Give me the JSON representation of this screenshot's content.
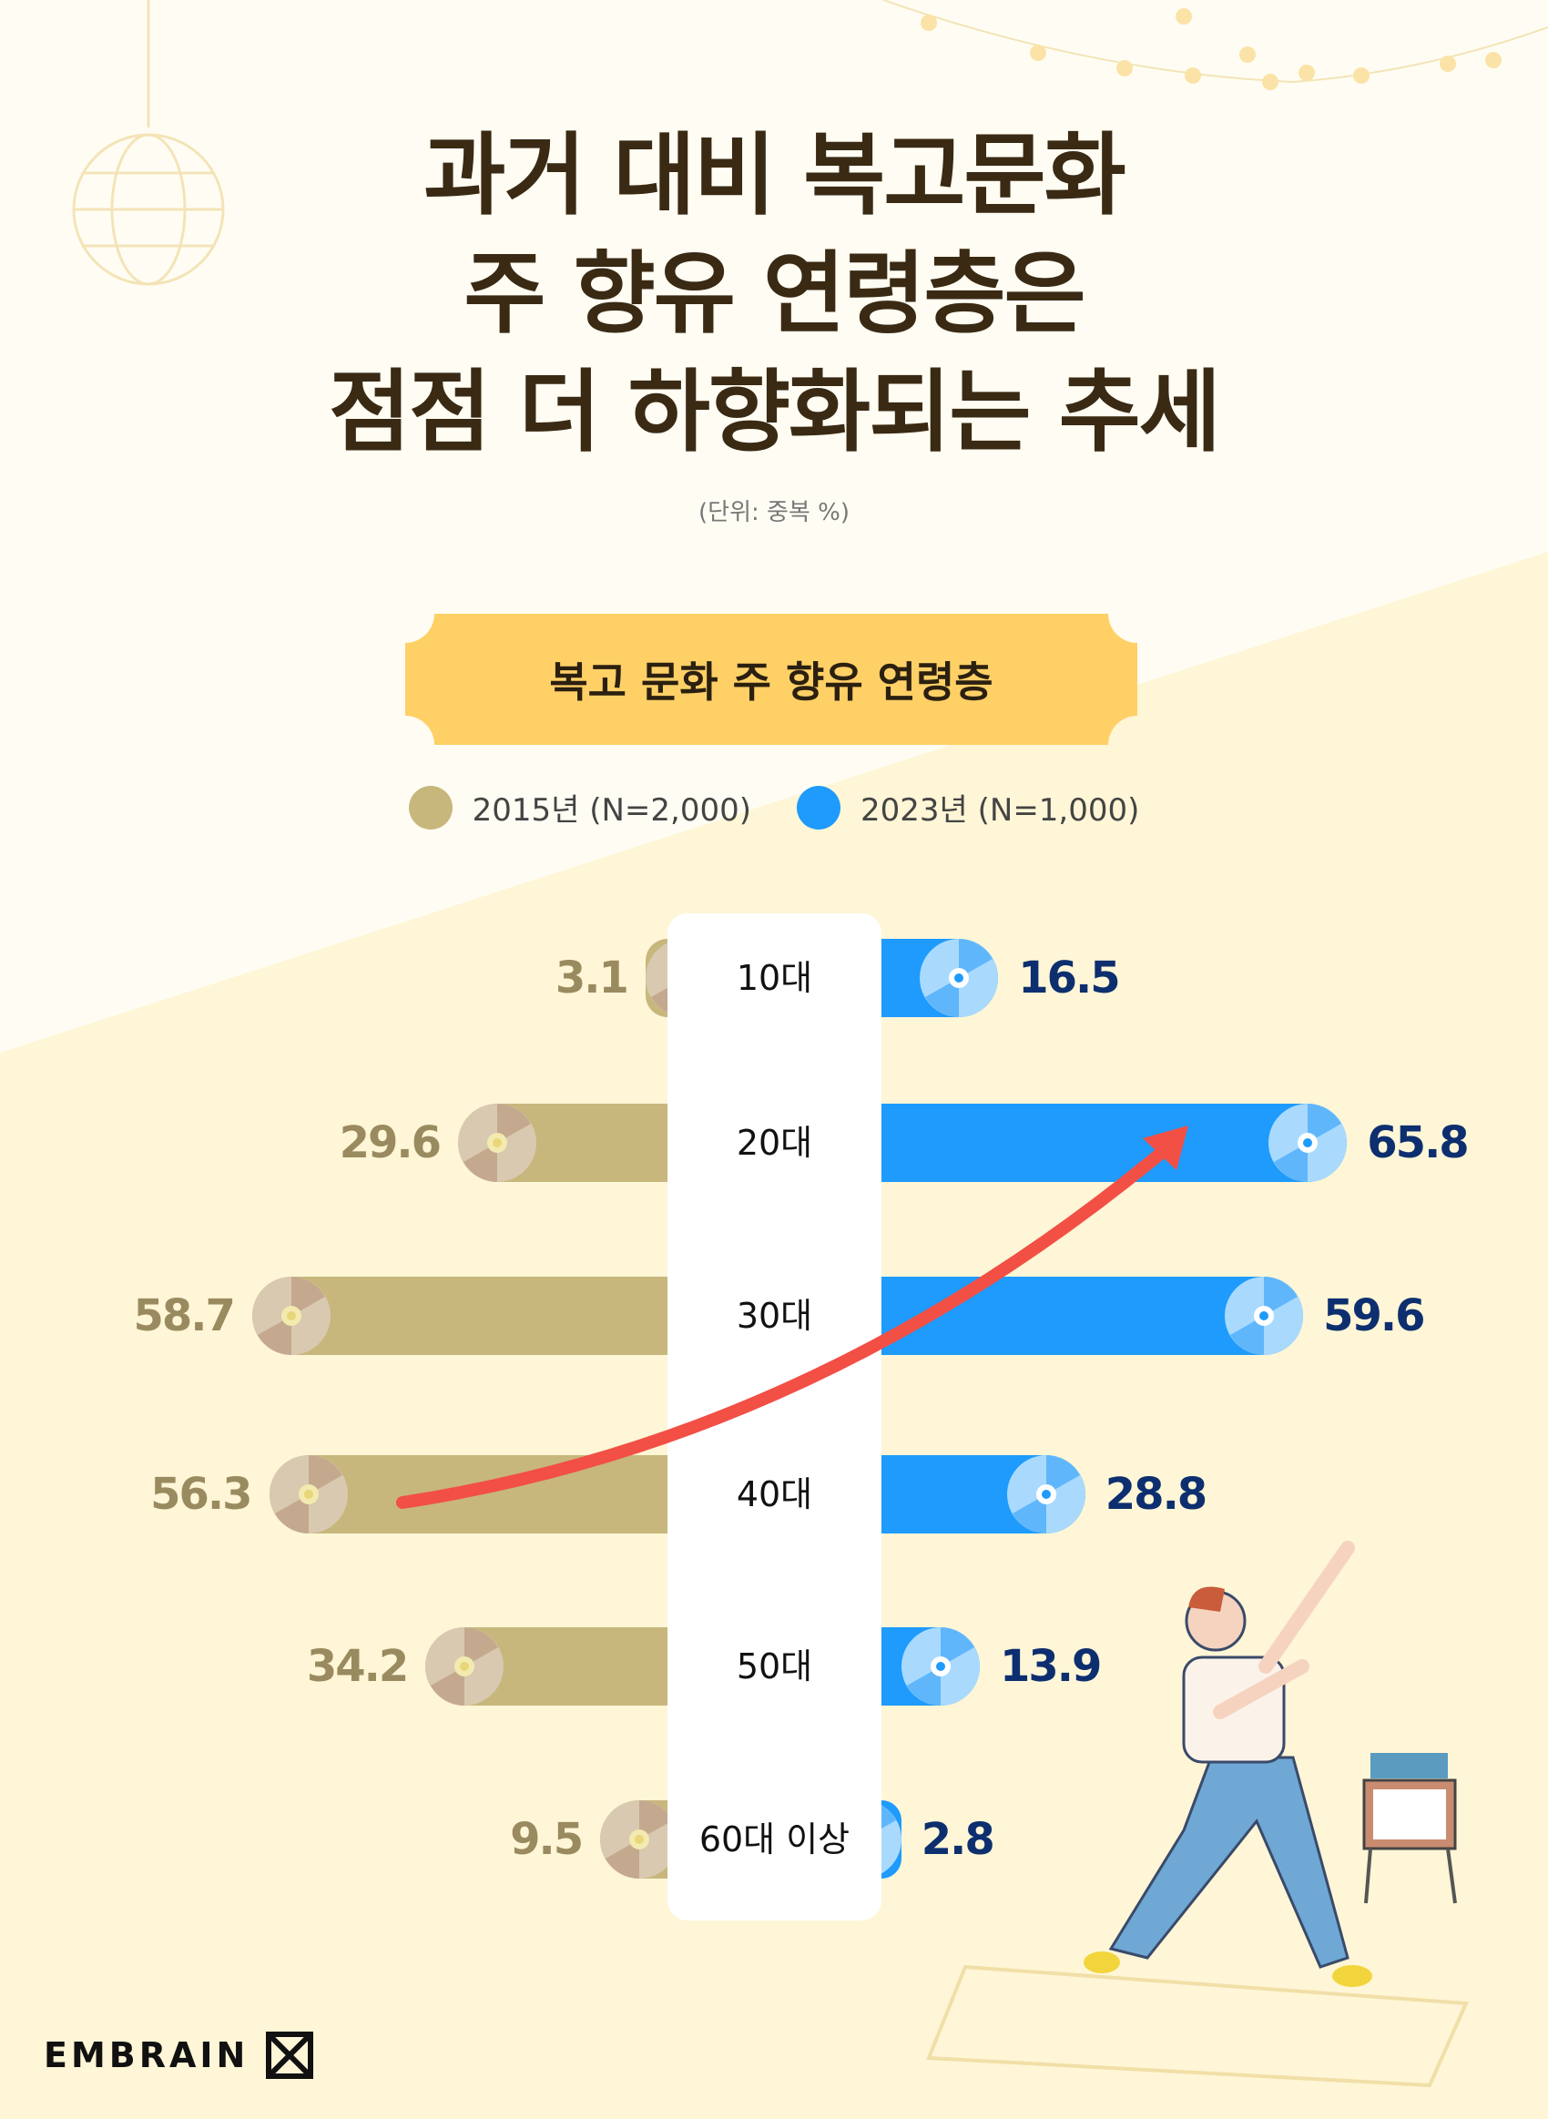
{
  "title": [
    "과거 대비 복고문화",
    "주 향유 연령층은",
    "점점 더 하향화되는 추세"
  ],
  "unit": "(단위: 중복 %)",
  "brand": "EMBRAIN",
  "colors": {
    "s2015": "#c8b77c",
    "s2023": "#1e9bfc",
    "label2015": "#9a8a5f",
    "label2023": "#0d2f6f",
    "ribbon": "#ffd066",
    "trend": "#f24f45"
  },
  "chart_data": {
    "type": "bar",
    "orientation": "horizontal-butterfly",
    "title": "복고 문화 주 향유 연령층",
    "categories": [
      "10대",
      "20대",
      "30대",
      "40대",
      "50대",
      "60대 이상"
    ],
    "series": [
      {
        "name": "2015년 (N=2,000)",
        "values": [
          3.1,
          29.6,
          58.7,
          56.3,
          34.2,
          9.5
        ]
      },
      {
        "name": "2023년 (N=1,000)",
        "values": [
          16.5,
          65.8,
          59.6,
          28.8,
          13.9,
          2.8
        ]
      }
    ],
    "annotation": "trend arrow from 40대 (2015) to 20대 (2023)",
    "legend": "top-center"
  }
}
